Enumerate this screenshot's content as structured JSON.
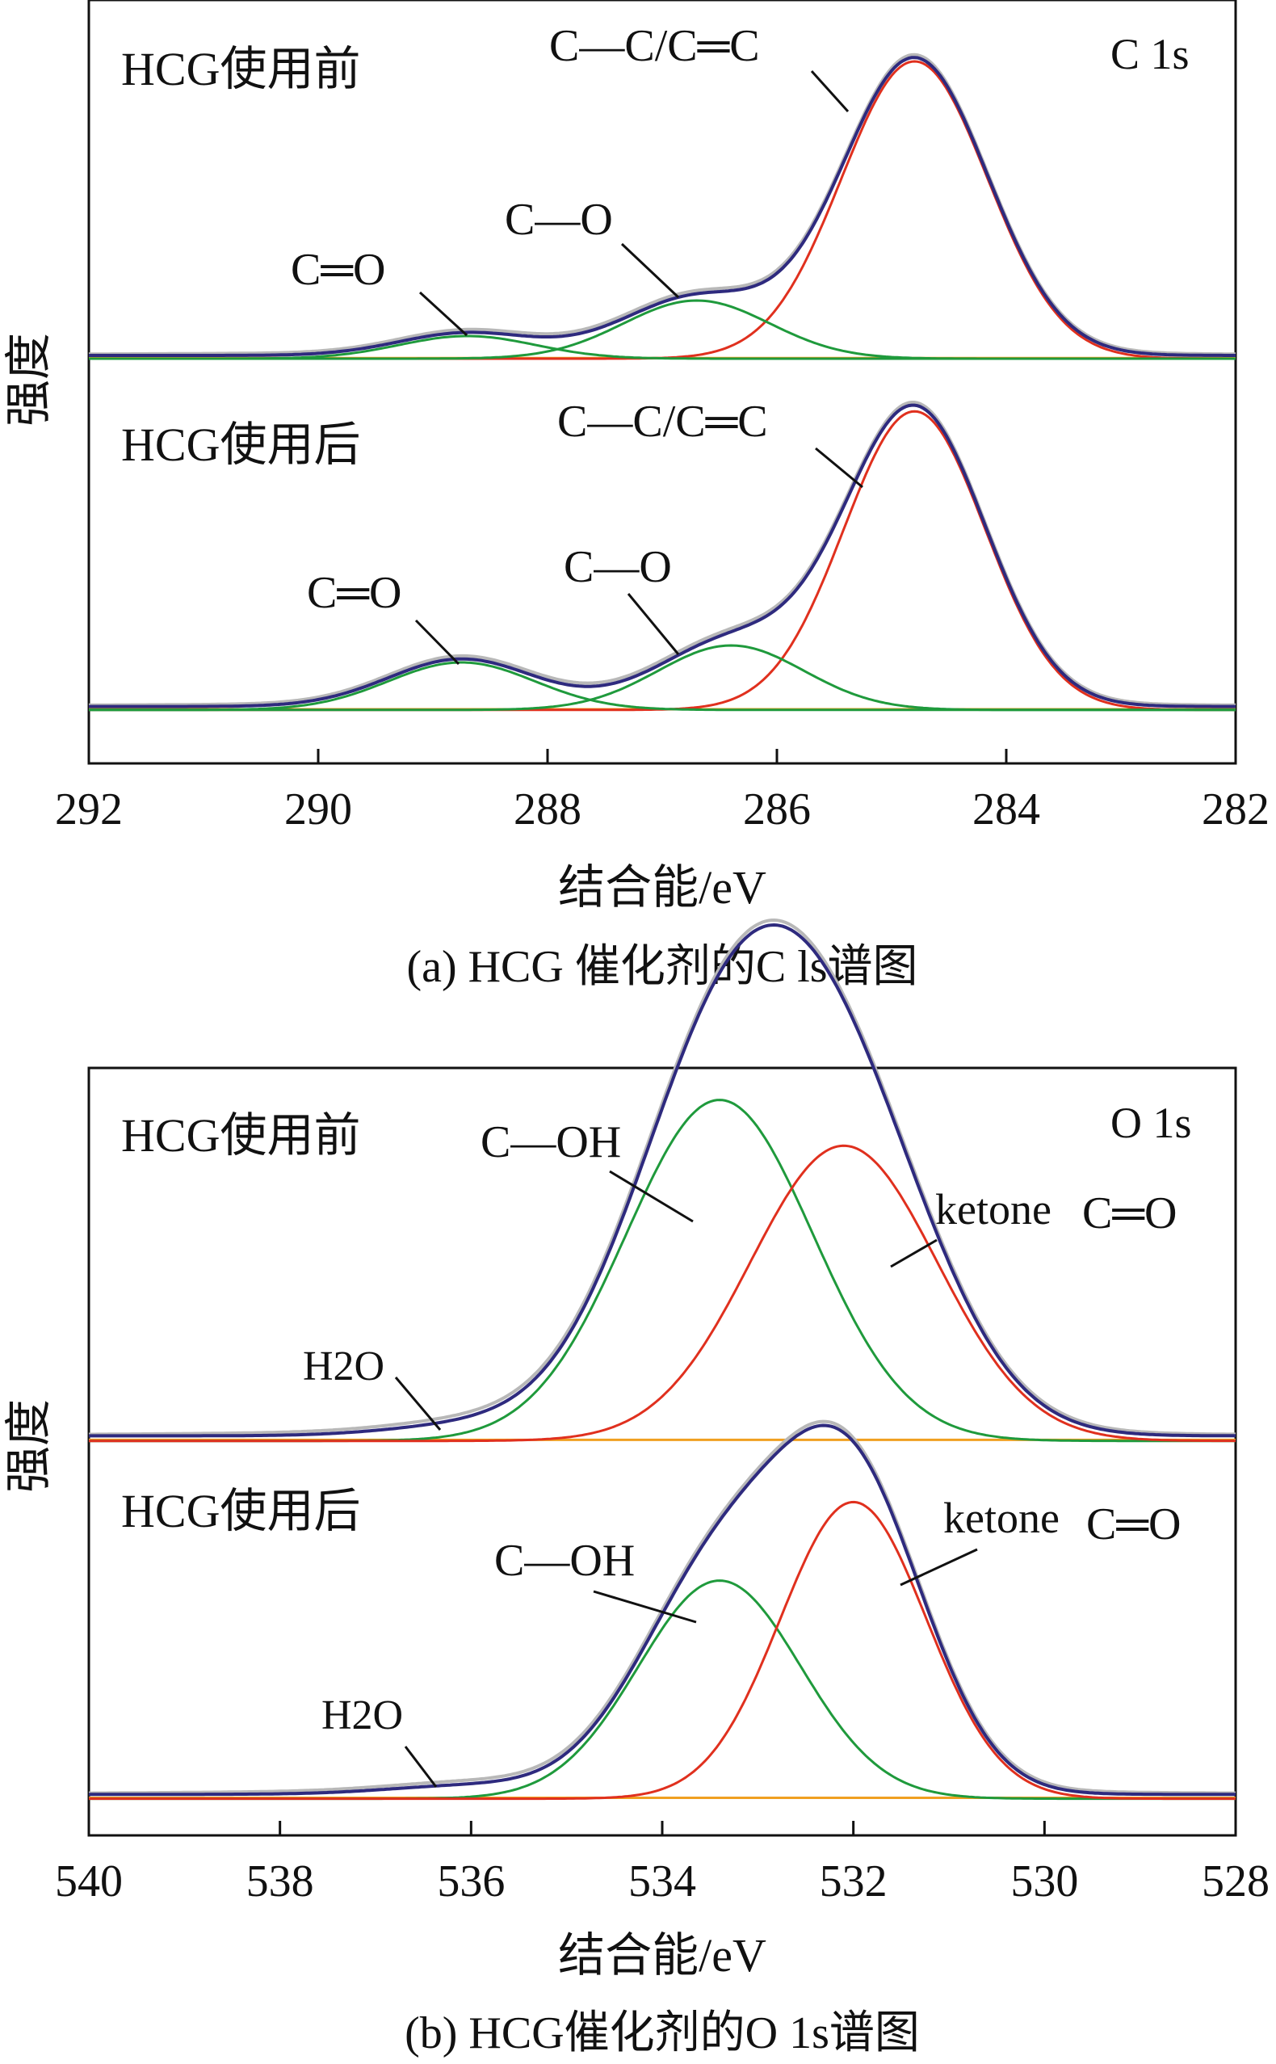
{
  "chart_data": [
    {
      "type": "line",
      "panel_label": "C 1s",
      "caption": "(a) HCG 催化剂的C ls谱图",
      "xlabel": "结合能/eV",
      "ylabel": "强度",
      "xlim": [
        292,
        282
      ],
      "x_ticks": [
        "292",
        "290",
        "288",
        "286",
        "284",
        "282"
      ],
      "x_reversed": true,
      "colors": {
        "raw": "#b8b8b8",
        "fit": "#2e2a7e",
        "main_peak": "#e0301e",
        "minor_peak": "#1f9a3c",
        "baseline": "#f0a020"
      },
      "subplots": [
        {
          "label": "HCG使用前",
          "baseline": 0.02,
          "peaks": [
            {
              "name": "C—C/C═C",
              "center": 284.8,
              "height": 0.92,
              "fwhm": 1.5,
              "color": "#e0301e"
            },
            {
              "name": "C—O",
              "center": 286.7,
              "height": 0.18,
              "fwhm": 1.5,
              "color": "#1f9a3c"
            },
            {
              "name": "C═O",
              "center": 288.7,
              "height": 0.07,
              "fwhm": 1.4,
              "color": "#1f9a3c"
            }
          ],
          "annotations": [
            "C—C/C═C",
            "C—O",
            "C═O"
          ]
        },
        {
          "label": "HCG使用后",
          "baseline": 0.02,
          "peaks": [
            {
              "name": "C—C/C═C",
              "center": 284.8,
              "height": 0.88,
              "fwhm": 1.45,
              "color": "#e0301e"
            },
            {
              "name": "C—O",
              "center": 286.4,
              "height": 0.19,
              "fwhm": 1.5,
              "color": "#1f9a3c"
            },
            {
              "name": "C═O",
              "center": 288.75,
              "height": 0.14,
              "fwhm": 1.5,
              "color": "#1f9a3c"
            }
          ],
          "annotations": [
            "C—C/C═C",
            "C—O",
            "C═O"
          ]
        }
      ]
    },
    {
      "type": "line",
      "panel_label": "O 1s",
      "caption": "(b) HCG催化剂的O 1s谱图",
      "xlabel": "结合能/eV",
      "ylabel": "强度",
      "xlim": [
        540,
        528
      ],
      "x_ticks": [
        "540",
        "538",
        "536",
        "534",
        "532",
        "530",
        "528"
      ],
      "x_reversed": true,
      "colors": {
        "raw": "#b8b8b8",
        "fit": "#2e2a7e",
        "main_peak": "#e0301e",
        "minor_peak": "#1f9a3c",
        "baseline": "#f0a020"
      },
      "subplots": [
        {
          "label": "HCG使用前",
          "baseline": 0.02,
          "peaks": [
            {
              "name": "C—OH",
              "center": 533.4,
              "height": 0.67,
              "fwhm": 2.3,
              "color": "#1f9a3c"
            },
            {
              "name": "ketone C═O",
              "center": 532.1,
              "height": 0.58,
              "fwhm": 2.3,
              "color": "#e0301e"
            },
            {
              "name": "H2O",
              "center": 536.0,
              "height": 0.02,
              "fwhm": 2.0,
              "color": "#f0a020"
            }
          ],
          "annotations": [
            "C—OH",
            "ketone",
            "C═O",
            "H2O"
          ]
        },
        {
          "label": "HCG使用后",
          "baseline": 0.02,
          "peaks": [
            {
              "name": "C—OH",
              "center": 533.4,
              "height": 0.5,
              "fwhm": 2.0,
              "color": "#1f9a3c"
            },
            {
              "name": "ketone C═O",
              "center": 532.0,
              "height": 0.68,
              "fwhm": 1.8,
              "color": "#e0301e"
            },
            {
              "name": "H2O",
              "center": 536.0,
              "height": 0.02,
              "fwhm": 2.0,
              "color": "#f0a020"
            }
          ],
          "annotations": [
            "C—OH",
            "ketone",
            "C═O",
            "H2O"
          ]
        }
      ]
    }
  ]
}
